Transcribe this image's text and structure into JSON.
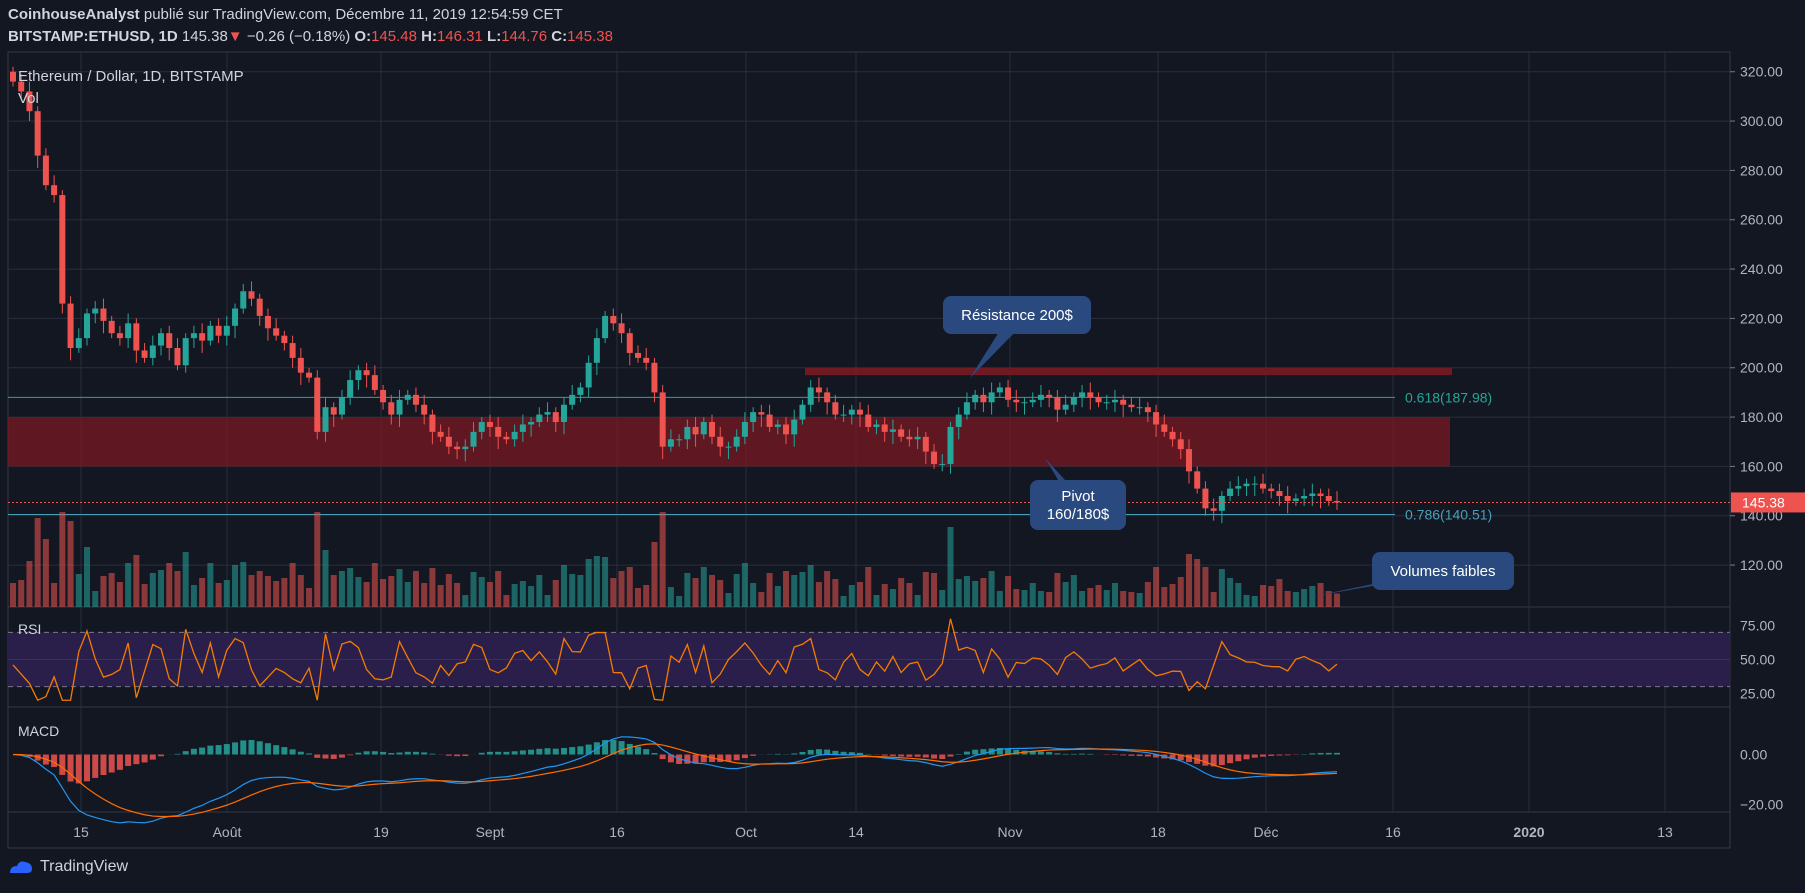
{
  "header": {
    "author": "CoinhouseAnalyst",
    "published_text": " publié sur TradingView.com, Décembre 11, 2019 12:54:59 CET",
    "symbol": "BITSTAMP:ETHUSD, 1D",
    "last": "145.38",
    "change": "−0.26 (−0.18%)",
    "o_label": "O:",
    "o": "145.48",
    "h_label": "H:",
    "h": "146.31",
    "l_label": "L:",
    "l": "144.76",
    "c_label": "C:",
    "c": "145.38"
  },
  "footer": {
    "brand": "TradingView"
  },
  "chart_data": [
    {
      "type": "candlestick",
      "title": "Ethereum / Dollar, 1D, BITSTAMP",
      "subtitle": "Vol",
      "y_axis_ticks": [
        "320.00",
        "300.00",
        "280.00",
        "260.00",
        "240.00",
        "220.00",
        "200.00",
        "180.00",
        "160.00",
        "140.00",
        "120.00"
      ],
      "ylim": [
        103,
        328
      ],
      "x_axis_ticks": [
        "15",
        "Août",
        "19",
        "Sept",
        "16",
        "Oct",
        "14",
        "Nov",
        "18",
        "Déc",
        "16",
        "2020",
        "13"
      ],
      "last_price_label": "145.38",
      "colors": {
        "up": "#26a69a",
        "down": "#ef5350",
        "zone": "#7a1a22",
        "fib": "#4a9fb8"
      },
      "zones": [
        {
          "name": "pivot-zone",
          "from": 160,
          "to": 180
        },
        {
          "name": "resistance-zone",
          "from": 197,
          "to": 200
        }
      ],
      "fib_levels": [
        {
          "label": "0.618(187.98)",
          "value": 187.98,
          "color": "#26a69a"
        },
        {
          "label": "0.786(140.51)",
          "value": 140.51,
          "color": "#4a9fb8"
        }
      ],
      "annotations": [
        {
          "name": "resistance-callout",
          "text": "Résistance 200$"
        },
        {
          "name": "pivot-callout",
          "text": "Pivot 160/180$"
        },
        {
          "name": "volume-callout",
          "text": "Volumes faibles"
        }
      ],
      "closes": [
        316,
        312,
        304,
        286,
        274,
        270,
        226,
        208,
        212,
        222,
        224,
        219,
        214,
        212,
        218,
        207,
        204,
        209,
        214,
        208,
        201,
        212,
        214,
        211,
        217,
        213,
        217,
        224,
        231,
        228,
        221,
        216,
        213,
        210,
        204,
        198,
        196,
        174,
        184,
        181,
        188,
        195,
        199,
        197,
        191,
        186,
        181,
        187,
        189,
        185,
        181,
        174,
        172,
        168,
        167,
        168,
        174,
        178,
        176,
        172,
        171,
        174,
        177,
        178,
        181,
        182,
        178,
        185,
        189,
        192,
        202,
        212,
        221,
        218,
        214,
        206,
        204,
        202,
        190,
        168,
        171,
        171,
        176,
        173,
        178,
        172,
        168,
        168,
        172,
        178,
        182,
        181,
        176,
        177,
        173,
        179,
        185,
        192,
        190,
        186,
        181,
        181,
        183,
        181,
        176,
        177,
        174,
        175,
        172,
        171,
        172,
        166,
        161,
        161,
        176,
        181,
        186,
        189,
        186,
        190,
        192,
        187,
        186,
        186,
        187,
        189,
        188,
        183,
        185,
        188,
        190,
        188,
        186,
        186,
        187,
        185,
        184,
        184,
        182,
        177,
        174,
        171,
        167,
        158,
        151,
        143,
        142,
        148,
        151,
        152,
        153,
        153,
        151,
        150,
        148,
        146,
        147,
        148,
        149,
        148,
        146,
        145.38
      ],
      "rsi": {
        "label": "RSI",
        "levels": [
          "75.00",
          "50.00",
          "25.00"
        ],
        "ylim": [
          15,
          85
        ]
      },
      "macd": {
        "label": "MACD",
        "levels": [
          "0.00",
          "−20.00"
        ],
        "ylim": [
          -23,
          17
        ]
      }
    }
  ]
}
